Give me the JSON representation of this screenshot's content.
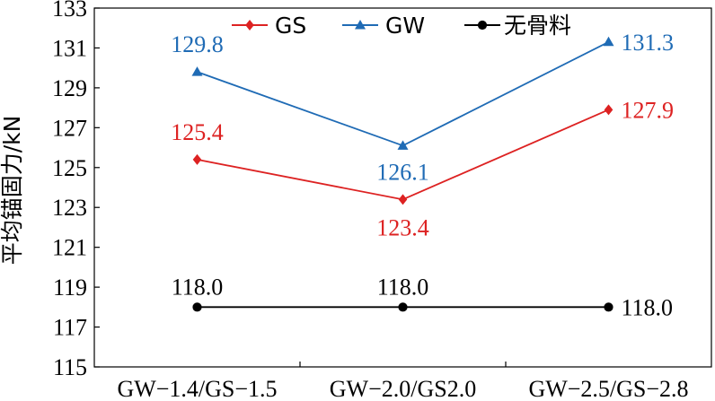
{
  "chart_data": {
    "type": "line",
    "categories": [
      "GW−1.4/GS−1.5",
      "GW−2.0/GS2.0",
      "GW−2.5/GS−2.8"
    ],
    "ylabel": "平均锚固力/kN",
    "xlabel": "",
    "ylim": [
      115,
      133
    ],
    "yticks": [
      "115",
      "117",
      "119",
      "121",
      "123",
      "125",
      "127",
      "129",
      "131",
      "133"
    ],
    "grid": false,
    "legend_position": "top",
    "series": [
      {
        "name": "GS",
        "color": "#dd2222",
        "marker": "diamond",
        "values": [
          125.4,
          123.4,
          127.9
        ],
        "labels": [
          "125.4",
          "123.4",
          "127.9"
        ]
      },
      {
        "name": "GW",
        "color": "#1f6bb5",
        "marker": "triangle",
        "values": [
          129.8,
          126.1,
          131.3
        ],
        "labels": [
          "129.8",
          "126.1",
          "131.3"
        ]
      },
      {
        "name": "无骨料",
        "color": "#000000",
        "marker": "circle",
        "values": [
          118.0,
          118.0,
          118.0
        ],
        "labels": [
          "118.0",
          "118.0",
          "118.0"
        ]
      }
    ]
  }
}
